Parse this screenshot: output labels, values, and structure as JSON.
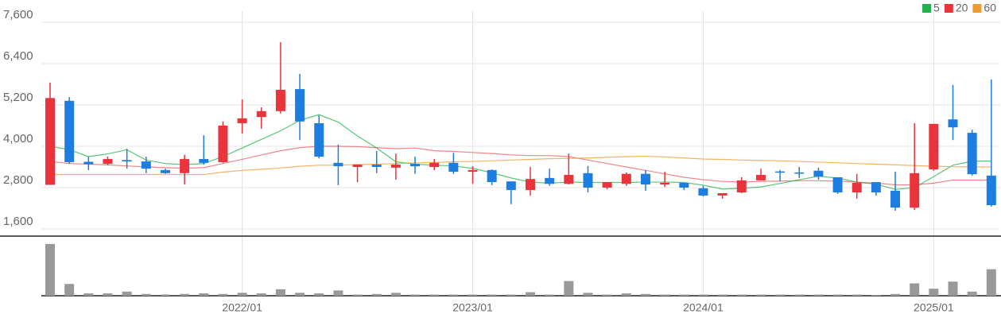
{
  "chart_data": {
    "type": "candlestick",
    "x": [
      "2021/03",
      "2021/04",
      "2021/05",
      "2021/06",
      "2021/07",
      "2021/08",
      "2021/09",
      "2021/10",
      "2021/11",
      "2021/12",
      "2022/01",
      "2022/02",
      "2022/03",
      "2022/04",
      "2022/05",
      "2022/06",
      "2022/07",
      "2022/08",
      "2022/09",
      "2022/10",
      "2022/11",
      "2022/12",
      "2023/01",
      "2023/02",
      "2023/03",
      "2023/04",
      "2023/05",
      "2023/06",
      "2023/07",
      "2023/08",
      "2023/09",
      "2023/10",
      "2023/11",
      "2023/12",
      "2024/01",
      "2024/02",
      "2024/03",
      "2024/04",
      "2024/05",
      "2024/06",
      "2024/07",
      "2024/08",
      "2024/09",
      "2024/10",
      "2024/11",
      "2024/12",
      "2025/01",
      "2025/02",
      "2025/03",
      "2025/04"
    ],
    "open": [
      2880,
      5320,
      3550,
      3490,
      3600,
      3560,
      3310,
      3220,
      3630,
      3540,
      4670,
      4850,
      5020,
      5660,
      4670,
      3520,
      3400,
      3470,
      3380,
      3490,
      3400,
      3520,
      3260,
      3310,
      2980,
      2730,
      3080,
      2910,
      3220,
      2800,
      2910,
      3200,
      2890,
      2940,
      2780,
      2570,
      2660,
      3010,
      3270,
      3240,
      3290,
      3100,
      2660,
      2960,
      2710,
      2220,
      3330,
      4780,
      4390,
      3150
    ],
    "high": [
      5850,
      5430,
      3700,
      3700,
      3930,
      3700,
      3350,
      3750,
      4320,
      4720,
      5360,
      5130,
      7020,
      6100,
      4900,
      4050,
      3470,
      3860,
      3790,
      3700,
      3630,
      3810,
      3420,
      3330,
      2980,
      3400,
      3350,
      3790,
      3430,
      2960,
      3240,
      3310,
      3260,
      2940,
      2850,
      2640,
      3100,
      3350,
      3310,
      3400,
      3380,
      3100,
      3200,
      2960,
      3260,
      4670,
      4650,
      5780,
      4480,
      5940
    ],
    "low": [
      2880,
      3490,
      3310,
      3450,
      3350,
      3220,
      3200,
      2890,
      3470,
      3520,
      4370,
      4510,
      4950,
      4180,
      3650,
      2870,
      2960,
      3220,
      3030,
      3200,
      3310,
      3200,
      2910,
      2870,
      2320,
      2570,
      2850,
      2890,
      2660,
      2750,
      2850,
      2710,
      2820,
      2730,
      2540,
      2480,
      2640,
      3010,
      2980,
      3080,
      3030,
      2620,
      2480,
      2570,
      2130,
      2150,
      3290,
      4180,
      3150,
      2250
    ],
    "close": [
      5400,
      3540,
      3480,
      3630,
      3560,
      3350,
      3220,
      3630,
      3520,
      4600,
      4810,
      5020,
      5640,
      4720,
      3700,
      3420,
      3470,
      3400,
      3470,
      3420,
      3520,
      3260,
      3310,
      2960,
      2730,
      3050,
      2910,
      3170,
      2800,
      2960,
      3200,
      2890,
      2940,
      2800,
      2570,
      2640,
      3010,
      3170,
      3240,
      3220,
      3120,
      2660,
      2940,
      2660,
      2220,
      3220,
      4650,
      4550,
      3190,
      2290
    ],
    "up_color": "#e8343a",
    "down_color": "#1e7de0",
    "series": [
      {
        "name": "5",
        "color": "#22b14c",
        "values": [
          4000,
          3900,
          3700,
          3780,
          3900,
          3600,
          3500,
          3470,
          3500,
          3700,
          3950,
          4200,
          4450,
          4750,
          4920,
          4700,
          4300,
          3950,
          3550,
          3480,
          3450,
          3430,
          3360,
          3230,
          3080,
          2960,
          2930,
          2960,
          2950,
          2950,
          2950,
          2960,
          2960,
          2950,
          2870,
          2760,
          2780,
          2820,
          2920,
          3030,
          3130,
          3080,
          2960,
          2900,
          2750,
          2800,
          3120,
          3450,
          3570,
          3570
        ]
      },
      {
        "name": "20",
        "color": "#e8343a",
        "values": [
          3560,
          3500,
          3480,
          3460,
          3430,
          3400,
          3380,
          3360,
          3380,
          3500,
          3620,
          3750,
          3870,
          3960,
          4000,
          4000,
          3990,
          3960,
          3930,
          3950,
          3870,
          3850,
          3820,
          3790,
          3750,
          3730,
          3730,
          3700,
          3600,
          3500,
          3400,
          3300,
          3200,
          3100,
          3030,
          2980,
          2960,
          2980,
          2990,
          3000,
          3000,
          2990,
          2960,
          2930,
          2880,
          2880,
          2930,
          3020,
          3020,
          3020
        ]
      },
      {
        "name": "60",
        "color": "#f39a2e",
        "values": [
          3180,
          3180,
          3180,
          3180,
          3180,
          3180,
          3180,
          3180,
          3180,
          3250,
          3300,
          3330,
          3370,
          3420,
          3450,
          3450,
          3470,
          3480,
          3500,
          3520,
          3530,
          3550,
          3560,
          3580,
          3600,
          3620,
          3640,
          3650,
          3660,
          3680,
          3700,
          3710,
          3690,
          3660,
          3630,
          3620,
          3600,
          3590,
          3580,
          3560,
          3540,
          3520,
          3500,
          3480,
          3460,
          3440,
          3420,
          3410,
          3400,
          3400
        ]
      }
    ],
    "ylim": [
      1600,
      7600
    ],
    "yticks": [
      {
        "value": 1600,
        "label": "1,600"
      },
      {
        "value": 2800,
        "label": "2,800"
      },
      {
        "value": 4000,
        "label": "4,000"
      },
      {
        "value": 5200,
        "label": "5,200"
      },
      {
        "value": 6400,
        "label": "6,400"
      },
      {
        "value": 7600,
        "label": "7,600"
      }
    ],
    "xticks": [
      "2022/01",
      "2023/01",
      "2024/01",
      "2025/01"
    ],
    "grid": true,
    "volume": [
      88,
      20,
      4,
      4,
      7,
      3,
      2,
      3,
      4,
      3,
      5,
      4,
      11,
      5,
      4,
      9,
      2,
      3,
      5,
      2,
      2,
      2,
      2,
      2,
      2,
      6,
      2,
      25,
      5,
      2,
      4,
      3,
      2,
      2,
      2,
      2,
      2,
      2,
      2,
      2,
      2,
      2,
      2,
      1,
      3,
      21,
      12,
      24,
      7,
      45
    ],
    "volume_color": "#999999",
    "volume_ylim": [
      0,
      100
    ],
    "legend": "top-right"
  }
}
